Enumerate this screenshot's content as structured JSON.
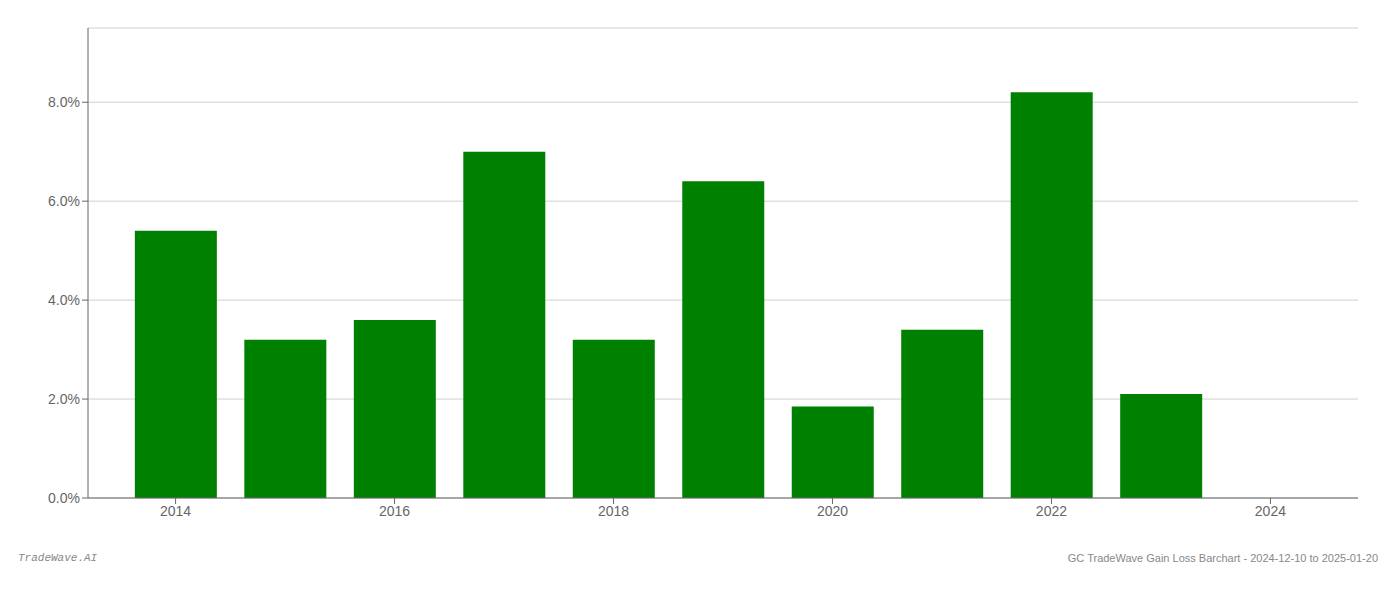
{
  "chart_data": {
    "type": "bar",
    "x": [
      2014,
      2015,
      2016,
      2017,
      2018,
      2019,
      2020,
      2021,
      2022,
      2023
    ],
    "values": [
      0.054,
      0.032,
      0.036,
      0.07,
      0.032,
      0.064,
      0.0185,
      0.034,
      0.082,
      0.021
    ],
    "color": "#008000",
    "xlim": [
      2013.2,
      2024.8
    ],
    "xticks": [
      2014,
      2016,
      2018,
      2020,
      2022,
      2024
    ],
    "ylim": [
      0,
      0.095
    ],
    "yticks": [
      {
        "value": 0.0,
        "label": "0.0%"
      },
      {
        "value": 0.02,
        "label": "2.0%"
      },
      {
        "value": 0.04,
        "label": "4.0%"
      },
      {
        "value": 0.06,
        "label": "6.0%"
      },
      {
        "value": 0.08,
        "label": "8.0%"
      }
    ],
    "grid": true,
    "annotations": [
      "TradeWave.AI",
      "GC TradeWave Gain Loss Barchart - 2024-12-10 to 2025-01-20"
    ]
  }
}
